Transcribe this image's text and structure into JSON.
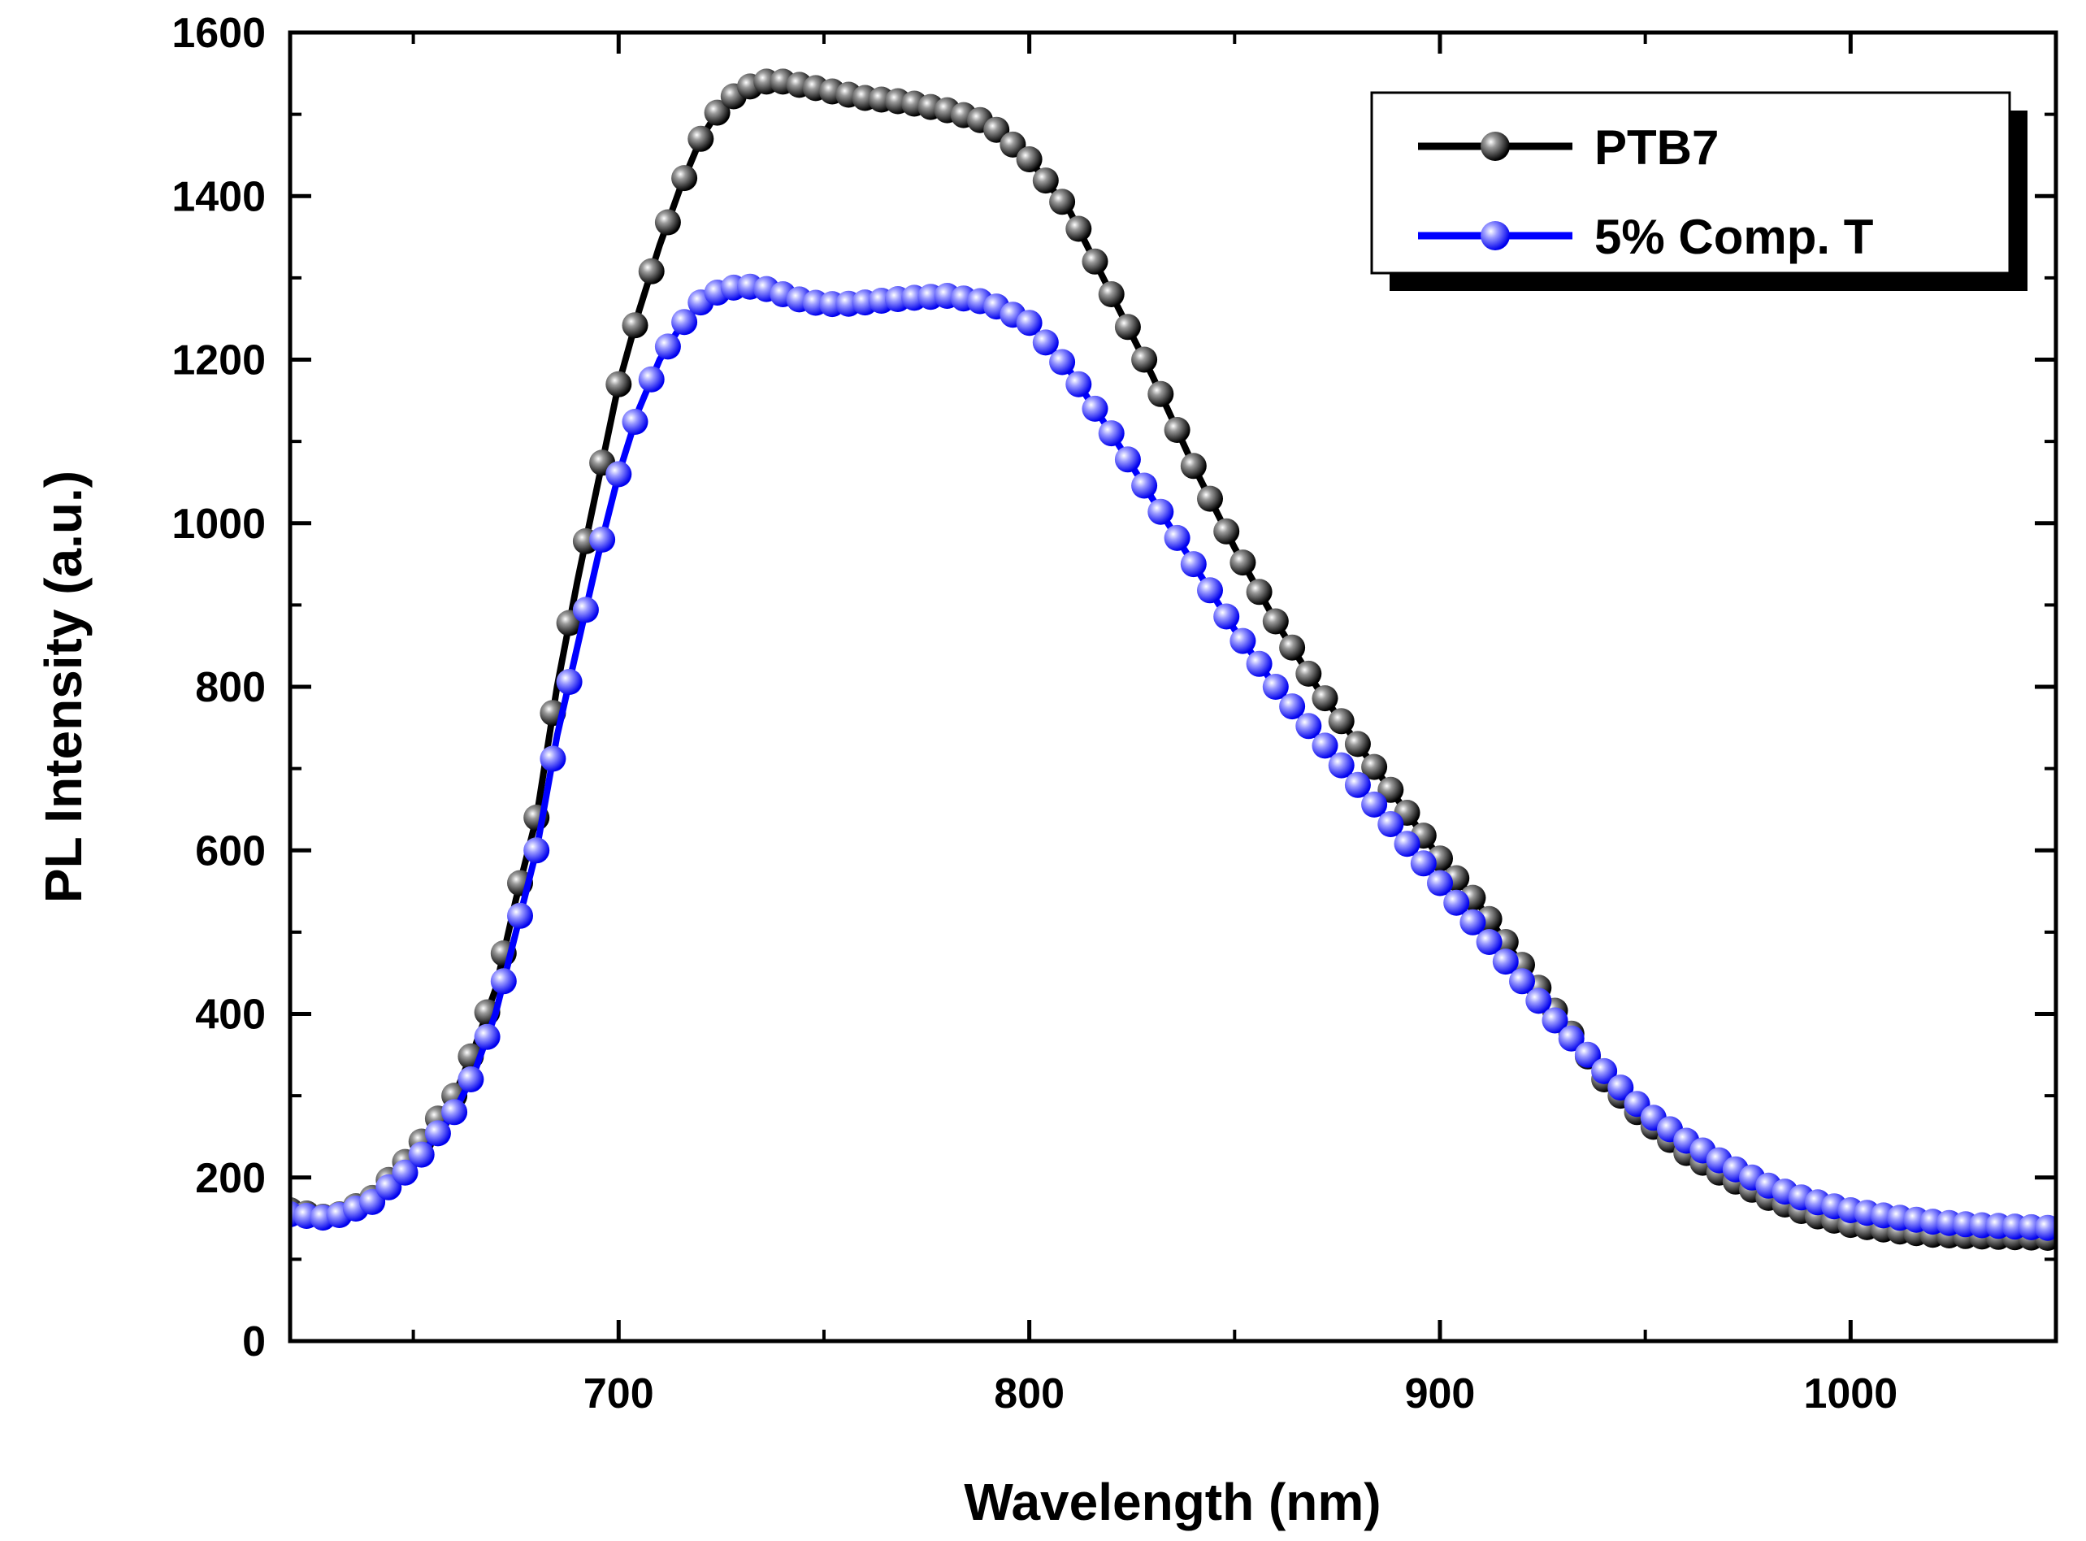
{
  "chart_data": {
    "type": "line",
    "xlabel": "Wavelength (nm)",
    "ylabel": "PL Intensity (a.u.)",
    "xlim": [
      620,
      1050
    ],
    "ylim": [
      0,
      1600
    ],
    "x_ticks": [
      700,
      800,
      900,
      1000
    ],
    "y_ticks": [
      0,
      200,
      400,
      600,
      800,
      1000,
      1200,
      1400,
      1600
    ],
    "grid": false,
    "legend_position": "top-right",
    "series": [
      {
        "name": "PTB7",
        "color": "#000000",
        "marker": "circle",
        "x": [
          620,
          630,
          640,
          650,
          660,
          665,
          670,
          675,
          680,
          685,
          690,
          695,
          700,
          705,
          710,
          715,
          720,
          725,
          730,
          735,
          740,
          745,
          750,
          755,
          760,
          770,
          780,
          790,
          800,
          810,
          820,
          830,
          840,
          850,
          860,
          870,
          880,
          890,
          900,
          910,
          920,
          930,
          940,
          950,
          960,
          970,
          980,
          990,
          1000,
          1010,
          1020,
          1030,
          1040,
          1050
        ],
        "values": [
          160,
          150,
          175,
          230,
          300,
          360,
          430,
          540,
          640,
          800,
          930,
          1050,
          1170,
          1260,
          1340,
          1410,
          1470,
          1510,
          1530,
          1540,
          1540,
          1535,
          1530,
          1525,
          1520,
          1515,
          1505,
          1490,
          1445,
          1380,
          1280,
          1180,
          1070,
          970,
          880,
          800,
          730,
          660,
          590,
          530,
          460,
          390,
          320,
          270,
          230,
          200,
          175,
          155,
          142,
          135,
          130,
          128,
          127,
          126
        ]
      },
      {
        "name": "5% Comp. T",
        "color": "#0000ff",
        "marker": "circle",
        "x": [
          620,
          630,
          640,
          650,
          660,
          665,
          670,
          675,
          680,
          685,
          690,
          695,
          700,
          705,
          710,
          715,
          720,
          725,
          730,
          735,
          740,
          745,
          750,
          755,
          760,
          770,
          780,
          790,
          800,
          810,
          820,
          830,
          840,
          850,
          860,
          870,
          880,
          890,
          900,
          910,
          920,
          930,
          940,
          950,
          960,
          970,
          980,
          990,
          1000,
          1010,
          1020,
          1030,
          1040,
          1050
        ],
        "values": [
          155,
          150,
          170,
          215,
          280,
          330,
          400,
          500,
          600,
          740,
          850,
          960,
          1060,
          1140,
          1200,
          1240,
          1270,
          1285,
          1290,
          1288,
          1280,
          1272,
          1268,
          1268,
          1270,
          1275,
          1278,
          1270,
          1245,
          1185,
          1110,
          1030,
          950,
          870,
          800,
          740,
          680,
          620,
          560,
          500,
          440,
          380,
          330,
          280,
          245,
          215,
          190,
          172,
          160,
          152,
          146,
          142,
          140,
          138
        ]
      }
    ]
  }
}
